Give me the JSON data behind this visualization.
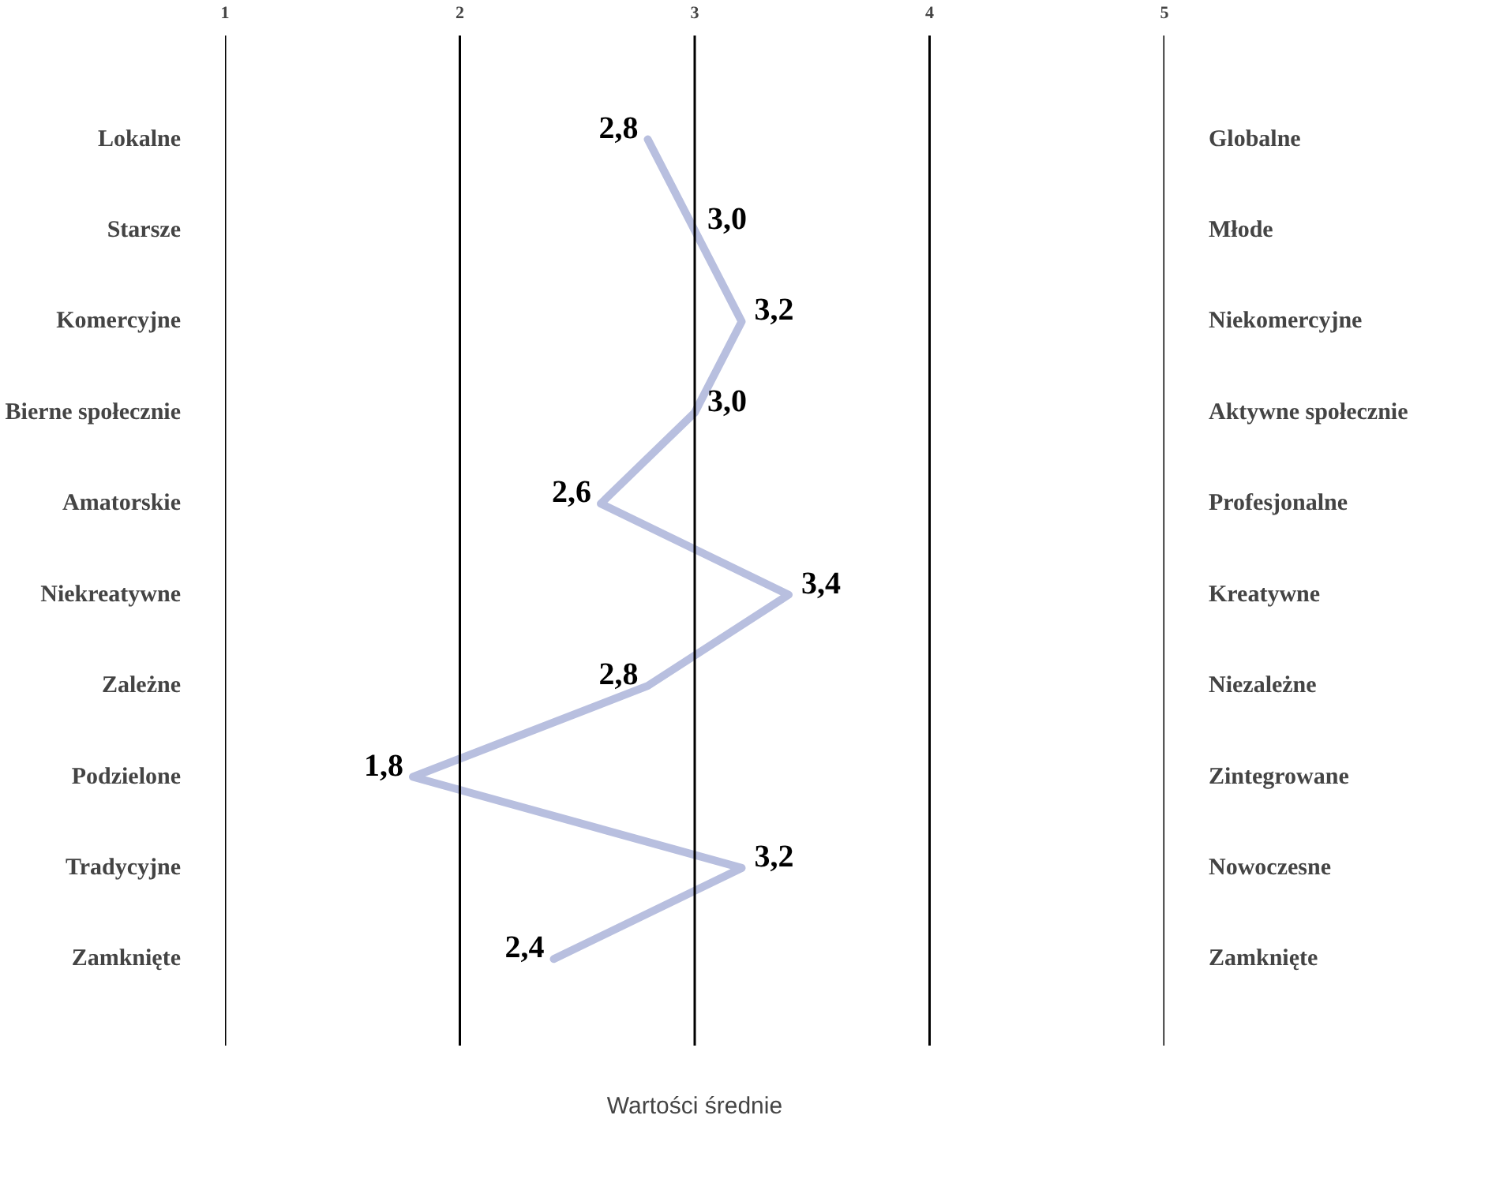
{
  "chart_data": {
    "type": "line",
    "orientation": "horizontal",
    "xlabel": "Wartości średnie",
    "categories": [
      "Lokalne",
      "Starsze",
      "Komercyjne",
      "Bierne społecznie",
      "Amatorskie",
      "Niekreatywne",
      "Zależne",
      "Podzielone",
      "Tradycyjne",
      "Zamknięte"
    ],
    "y2_categories": [
      "Globalne",
      "Młode",
      "Niekomercyjne",
      "Aktywne społecznie",
      "Profesjonalne",
      "Kreatywne",
      "Niezależne",
      "Zintegrowane",
      "Nowoczesne",
      "Zamknięte"
    ],
    "series": [
      {
        "color": "#b8bfdf",
        "values": [
          2.8,
          3.0,
          3.2,
          3.0,
          2.6,
          3.4,
          2.8,
          1.8,
          3.2,
          2.4
        ],
        "value_labels": [
          "2,8",
          "3,0",
          "3,2",
          "3,0",
          "2,6",
          "3,4",
          "2,8",
          "1,8",
          "3,2",
          "2,4"
        ]
      }
    ],
    "xlim": [
      1,
      5
    ],
    "xticks": [
      1,
      2,
      3,
      4,
      5
    ],
    "grid": "x",
    "marker": "none",
    "line_style": "solid"
  }
}
